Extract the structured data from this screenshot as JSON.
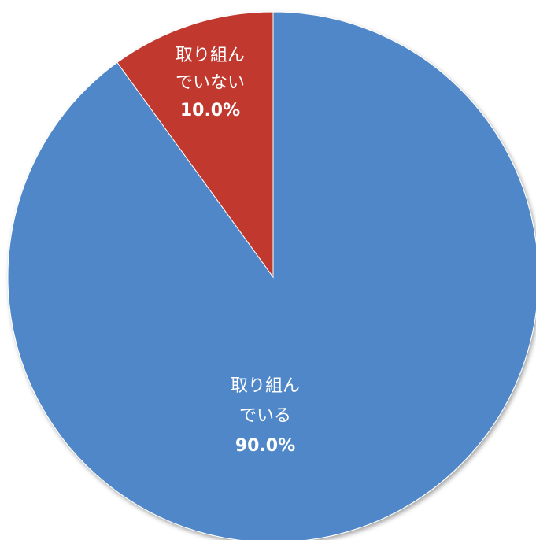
{
  "chart_data": {
    "type": "pie",
    "start_angle": "12 o'clock",
    "direction": "clockwise",
    "slices": [
      {
        "label_lines": [
          "取り組ん",
          "でいる"
        ],
        "value": 90.0,
        "value_label": "90.0%",
        "color": "#5087c8"
      },
      {
        "label_lines": [
          "取り組ん",
          "でいない"
        ],
        "value": 10.0,
        "value_label": "10.0%",
        "color": "#c0392f"
      }
    ]
  }
}
